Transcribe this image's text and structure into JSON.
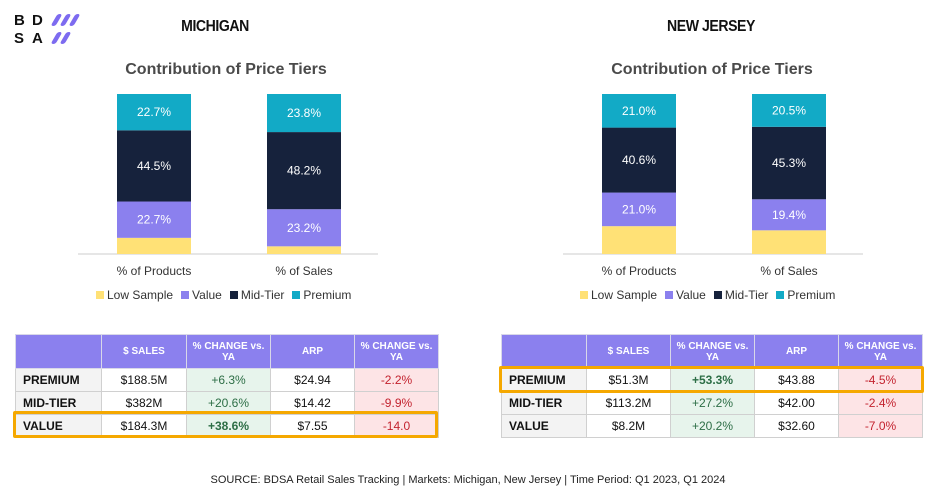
{
  "logo": {
    "line1": "B D",
    "line2": "S A"
  },
  "colors": {
    "low_sample": "#ffe176",
    "value": "#8b80ee",
    "mid_tier": "#16223c",
    "premium": "#12aac6"
  },
  "michigan": {
    "title": "MICHIGAN",
    "chart_title": "Contribution of Price Tiers"
  },
  "new_jersey": {
    "title": "NEW JERSEY",
    "chart_title": "Contribution of Price Tiers"
  },
  "legend": [
    "Low Sample",
    "Value",
    "Mid-Tier",
    "Premium"
  ],
  "chart_data": [
    {
      "type": "bar",
      "stacked": true,
      "title": "Contribution of Price Tiers",
      "region": "MICHIGAN",
      "categories": [
        "% of Products",
        "% of Sales"
      ],
      "series": [
        {
          "name": "Low Sample",
          "values": [
            10.1,
            4.8
          ],
          "labels": [
            "",
            ""
          ]
        },
        {
          "name": "Value",
          "values": [
            22.7,
            23.2
          ],
          "labels": [
            "22.7%",
            "23.2%"
          ]
        },
        {
          "name": "Mid-Tier",
          "values": [
            44.5,
            48.2
          ],
          "labels": [
            "44.5%",
            "48.2%"
          ]
        },
        {
          "name": "Premium",
          "values": [
            22.7,
            23.8
          ],
          "labels": [
            "22.7%",
            "23.8%"
          ]
        }
      ],
      "ylim": [
        0,
        100
      ],
      "legend_position": "bottom"
    },
    {
      "type": "bar",
      "stacked": true,
      "title": "Contribution of Price Tiers",
      "region": "NEW JERSEY",
      "categories": [
        "% of Products",
        "% of Sales"
      ],
      "series": [
        {
          "name": "Low Sample",
          "values": [
            17.4,
            14.8
          ],
          "labels": [
            "",
            ""
          ]
        },
        {
          "name": "Value",
          "values": [
            21.0,
            19.4
          ],
          "labels": [
            "21.0%",
            "19.4%"
          ]
        },
        {
          "name": "Mid-Tier",
          "values": [
            40.6,
            45.3
          ],
          "labels": [
            "40.6%",
            "45.3%"
          ]
        },
        {
          "name": "Premium",
          "values": [
            21.0,
            20.5
          ],
          "labels": [
            "21.0%",
            "20.5%"
          ]
        }
      ],
      "ylim": [
        0,
        100
      ],
      "legend_position": "bottom"
    }
  ],
  "tables": {
    "headers": [
      "",
      "$ SALES",
      "% CHANGE vs. YA",
      "ARP",
      "% CHANGE vs. YA"
    ],
    "michigan": [
      {
        "label": "PREMIUM",
        "sales": "$188.5M",
        "sales_change": "+6.3%",
        "arp": "$24.94",
        "arp_change": "-2.2%"
      },
      {
        "label": "MID-TIER",
        "sales": "$382M",
        "sales_change": "+20.6%",
        "arp": "$14.42",
        "arp_change": "-9.9%"
      },
      {
        "label": "VALUE",
        "sales": "$184.3M",
        "sales_change": "+38.6%",
        "arp": "$7.55",
        "arp_change": "-14.0"
      }
    ],
    "new_jersey": [
      {
        "label": "PREMIUM",
        "sales": "$51.3M",
        "sales_change": "+53.3%",
        "arp": "$43.88",
        "arp_change": "-4.5%"
      },
      {
        "label": "MID-TIER",
        "sales": "$113.2M",
        "sales_change": "+27.2%",
        "arp": "$42.00",
        "arp_change": "-2.4%"
      },
      {
        "label": "VALUE",
        "sales": "$8.2M",
        "sales_change": "+20.2%",
        "arp": "$32.60",
        "arp_change": "-7.0%"
      }
    ]
  },
  "source": "SOURCE: BDSA Retail Sales Tracking | Markets: Michigan, New Jersey | Time Period: Q1 2023, Q1 2024"
}
